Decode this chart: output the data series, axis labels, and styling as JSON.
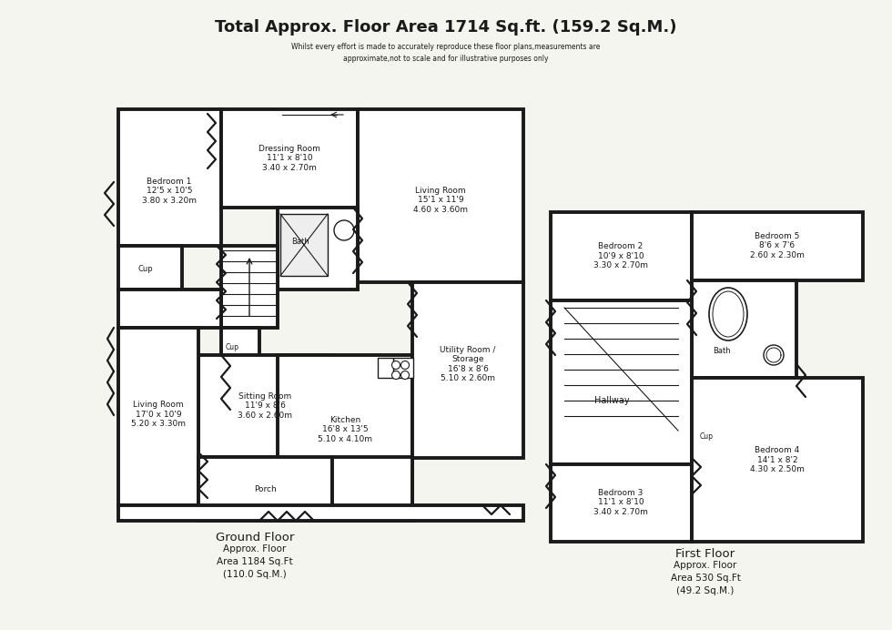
{
  "title": "Total Approx. Floor Area 1714 Sq.ft. (159.2 Sq.M.)",
  "subtitle": "Whilst every effort is made to accurately reproduce these floor plans,measurements are\napproximate,not to scale and for illustrative purposes only",
  "ground_floor_label": "Ground Floor",
  "ground_floor_area": "Approx. Floor\nArea 1184 Sq.Ft\n(110.0 Sq.M.)",
  "first_floor_label": "First Floor",
  "first_floor_area": "Approx. Floor\nArea 530 Sq.Ft\n(49.2 Sq.M.)",
  "wall_color": "#1a1a1a",
  "fill_color": "#ffffff",
  "bg_color": "#f5f5f0"
}
